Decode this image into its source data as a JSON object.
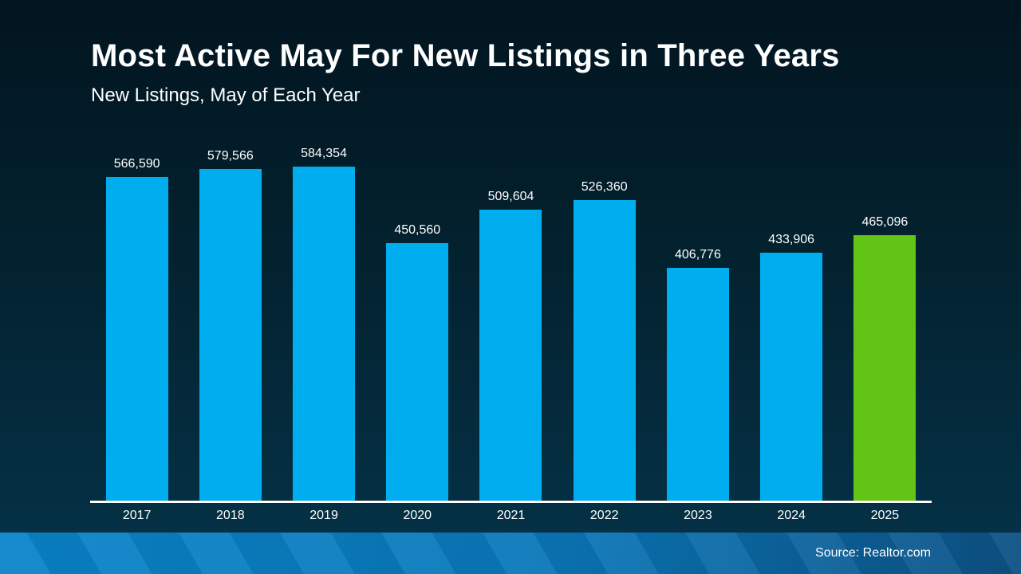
{
  "chart_data": {
    "type": "bar",
    "title": "Most Active May For New Listings in Three Years",
    "subtitle": "New Listings, May of Each Year",
    "categories": [
      "2017",
      "2018",
      "2019",
      "2020",
      "2021",
      "2022",
      "2023",
      "2024",
      "2025"
    ],
    "values": [
      566590,
      579566,
      584354,
      450560,
      509604,
      526360,
      406776,
      433906,
      465096
    ],
    "value_labels": [
      "566,590",
      "579,566",
      "584,354",
      "450,560",
      "509,604",
      "526,360",
      "406,776",
      "433,906",
      "465,096"
    ],
    "highlight_index": 8,
    "ylim": [
      0,
      584354
    ],
    "grid": false,
    "legend": false,
    "colors": {
      "bar_default": "#00aeef",
      "bar_highlight": "#62c414",
      "axis": "#ffffff",
      "text": "#ffffff"
    }
  },
  "footer": {
    "source_label": "Source: Realtor.com"
  },
  "theme": {
    "background_top": "#021520",
    "background_bottom": "#053349",
    "footer_left": "#0a85cb",
    "footer_right": "#0d5184"
  }
}
